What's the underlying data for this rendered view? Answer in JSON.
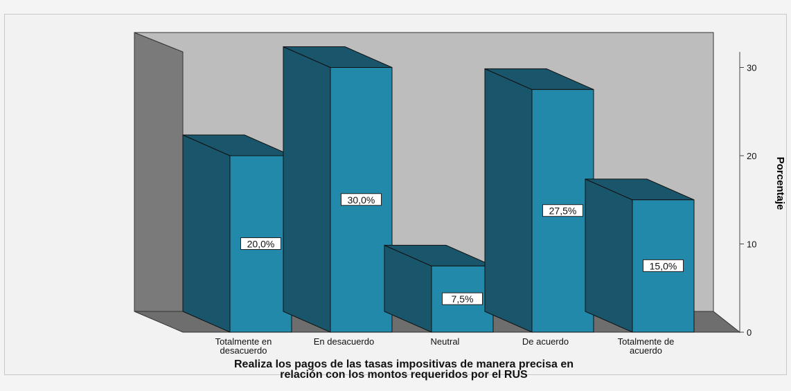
{
  "chart_data": {
    "type": "bar",
    "categories": [
      [
        "Totalmente en",
        "desacuerdo"
      ],
      [
        "En desacuerdo"
      ],
      [
        "Neutral"
      ],
      [
        "De acuerdo"
      ],
      [
        "Totalmente de",
        "acuerdo"
      ]
    ],
    "values": [
      20.0,
      30.0,
      7.5,
      27.5,
      15.0
    ],
    "data_labels": [
      "20,0%",
      "30,0%",
      "7,5%",
      "27,5%",
      "15,0%"
    ],
    "xlabel": [
      "Realiza los pagos de las tasas impositivas de manera precisa en",
      "relación con los montos requeridos por el RUS"
    ],
    "ylabel": "Porcentaje",
    "ylim": [
      0,
      30
    ],
    "yticks": [
      0,
      10,
      20,
      30
    ],
    "bar_color": "#2389ab",
    "bar_side_color": "#1a566b",
    "wall_color": "#bdbdbd",
    "side_wall_color": "#7a7a7a",
    "floor_color": "#6e6e6e"
  }
}
